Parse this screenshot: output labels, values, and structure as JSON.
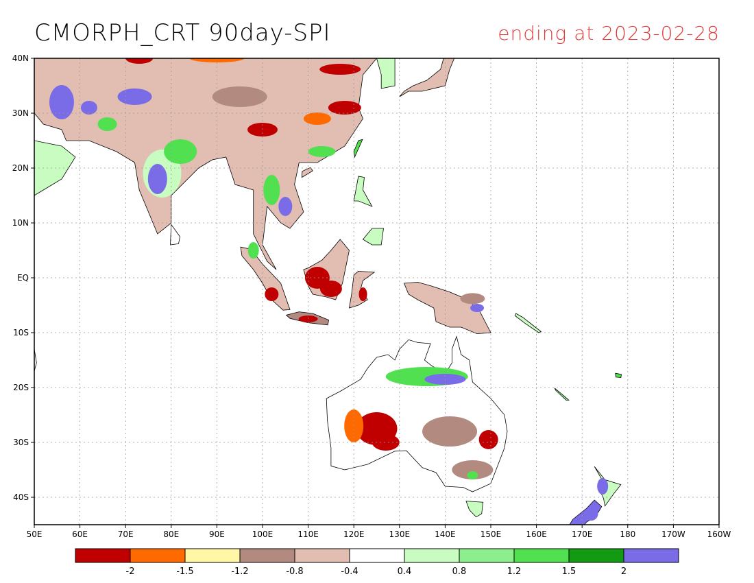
{
  "title": "CMORPH_CRT 90day-SPI",
  "subtitle": "ending at 2023-02-28",
  "colors": {
    "title": "#000000",
    "subtitle": "#e03a3a",
    "frame": "#000000",
    "grid": "#999999",
    "land": "#ffffff"
  },
  "map": {
    "lon_range": [
      50,
      200
    ],
    "lat_range": [
      -45,
      40
    ],
    "lon_ticks": [
      {
        "value": 50,
        "label": "50E"
      },
      {
        "value": 60,
        "label": "60E"
      },
      {
        "value": 70,
        "label": "70E"
      },
      {
        "value": 80,
        "label": "80E"
      },
      {
        "value": 90,
        "label": "90E"
      },
      {
        "value": 100,
        "label": "100E"
      },
      {
        "value": 110,
        "label": "110E"
      },
      {
        "value": 120,
        "label": "120E"
      },
      {
        "value": 130,
        "label": "130E"
      },
      {
        "value": 140,
        "label": "140E"
      },
      {
        "value": 150,
        "label": "150E"
      },
      {
        "value": 160,
        "label": "160E"
      },
      {
        "value": 170,
        "label": "170E"
      },
      {
        "value": 180,
        "label": "180"
      },
      {
        "value": 190,
        "label": "170W"
      },
      {
        "value": 200,
        "label": "160W"
      }
    ],
    "lat_ticks": [
      {
        "value": 40,
        "label": "40N"
      },
      {
        "value": 30,
        "label": "30N"
      },
      {
        "value": 20,
        "label": "20N"
      },
      {
        "value": 10,
        "label": "10N"
      },
      {
        "value": 0,
        "label": "EQ"
      },
      {
        "value": -10,
        "label": "10S"
      },
      {
        "value": -20,
        "label": "20S"
      },
      {
        "value": -30,
        "label": "30S"
      },
      {
        "value": -40,
        "label": "40S"
      }
    ]
  },
  "legend": {
    "colors": [
      "#c00000",
      "#ff6a00",
      "#fff6a6",
      "#b38a80",
      "#e2bdb2",
      "#ffffff",
      "#c8fcc0",
      "#8cee8c",
      "#50e050",
      "#139a13",
      "#7a6ce6"
    ],
    "labels": [
      "-2",
      "-1.5",
      "-1.2",
      "-0.8",
      "-0.4",
      "0.4",
      "0.8",
      "1.2",
      "1.5",
      "2"
    ]
  },
  "regions": [
    {
      "name": "india",
      "spi_class": 6,
      "pattern": "mixed-wet"
    },
    {
      "name": "china",
      "spi_class": 3,
      "pattern": "mixed-dry"
    },
    {
      "name": "australia-west",
      "spi_class": 0,
      "pattern": "dry-core"
    },
    {
      "name": "australia-north",
      "spi_class": 8,
      "pattern": "wet-band"
    }
  ]
}
